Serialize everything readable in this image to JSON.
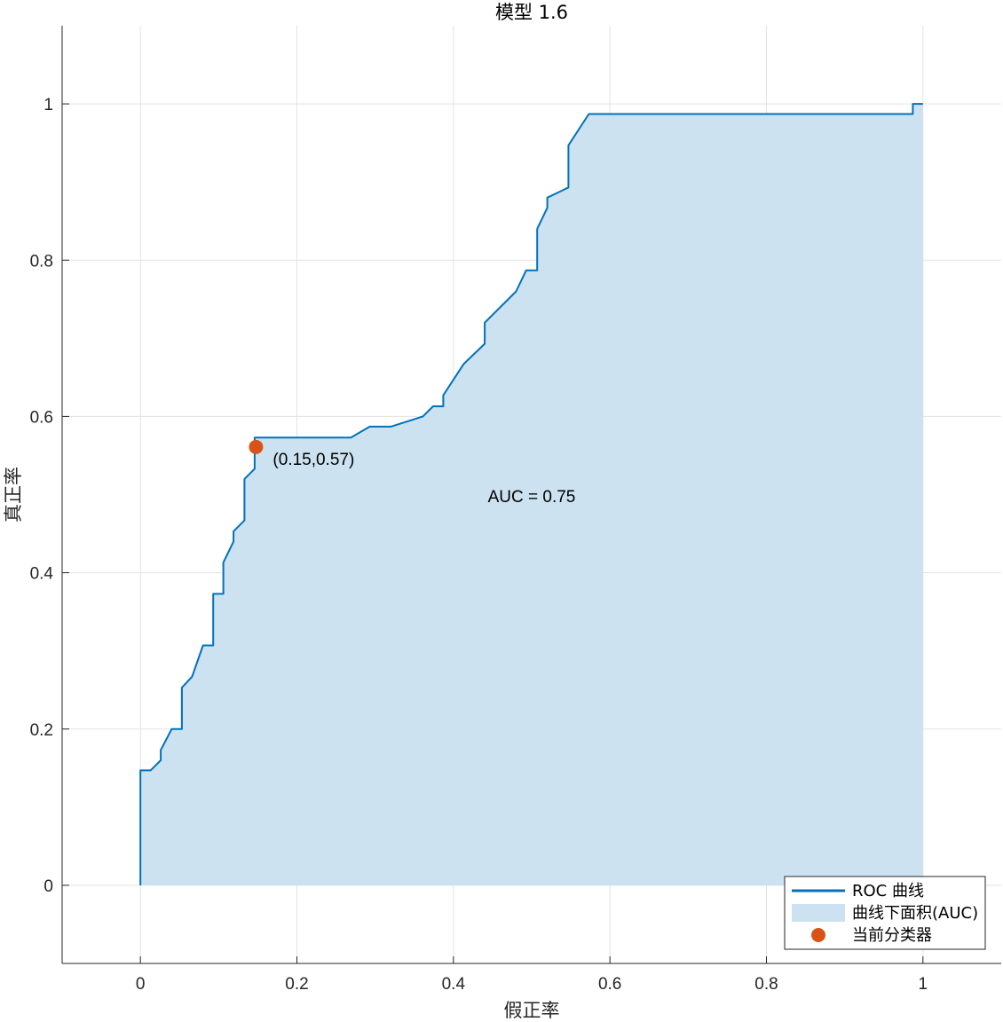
{
  "chart_data": {
    "type": "line",
    "title": "模型 1.6",
    "xlabel": "假正率",
    "ylabel": "真正率",
    "xlim": [
      -0.1,
      1.1
    ],
    "ylim": [
      -0.1,
      1.1
    ],
    "xticks": [
      0,
      0.2,
      0.4,
      0.6,
      0.8,
      1
    ],
    "xtick_labels": [
      "0",
      "0.2",
      "0.4",
      "0.6",
      "0.8",
      "1"
    ],
    "yticks": [
      0,
      0.2,
      0.4,
      0.6,
      0.8,
      1
    ],
    "ytick_labels": [
      "0",
      "0.2",
      "0.4",
      "0.6",
      "0.8",
      "1"
    ],
    "grid": true,
    "legend_position": "bottom-right",
    "series": [
      {
        "name": "ROC 曲线",
        "color": "#0072BD",
        "points": [
          [
            0,
            0
          ],
          [
            0,
            0.147
          ],
          [
            0.013,
            0.147
          ],
          [
            0.026,
            0.16
          ],
          [
            0.026,
            0.173
          ],
          [
            0.04,
            0.2
          ],
          [
            0.053,
            0.2
          ],
          [
            0.053,
            0.253
          ],
          [
            0.066,
            0.267
          ],
          [
            0.08,
            0.307
          ],
          [
            0.093,
            0.307
          ],
          [
            0.093,
            0.373
          ],
          [
            0.106,
            0.373
          ],
          [
            0.106,
            0.413
          ],
          [
            0.119,
            0.44
          ],
          [
            0.119,
            0.453
          ],
          [
            0.133,
            0.467
          ],
          [
            0.133,
            0.52
          ],
          [
            0.146,
            0.533
          ],
          [
            0.146,
            0.573
          ],
          [
            0.269,
            0.573
          ],
          [
            0.293,
            0.587
          ],
          [
            0.32,
            0.587
          ],
          [
            0.361,
            0.6
          ],
          [
            0.374,
            0.613
          ],
          [
            0.387,
            0.613
          ],
          [
            0.387,
            0.627
          ],
          [
            0.413,
            0.667
          ],
          [
            0.44,
            0.693
          ],
          [
            0.44,
            0.72
          ],
          [
            0.48,
            0.76
          ],
          [
            0.493,
            0.787
          ],
          [
            0.507,
            0.787
          ],
          [
            0.507,
            0.84
          ],
          [
            0.52,
            0.867
          ],
          [
            0.52,
            0.88
          ],
          [
            0.547,
            0.893
          ],
          [
            0.547,
            0.947
          ],
          [
            0.573,
            0.987
          ],
          [
            0.987,
            0.987
          ],
          [
            0.987,
            1.0
          ],
          [
            1.0,
            1.0
          ]
        ]
      }
    ],
    "area": {
      "name": "曲线下面积(AUC)",
      "color": "#CCE2F0"
    },
    "marker": {
      "name": "当前分类器",
      "x": 0.15,
      "y": 0.57,
      "color": "#D95319",
      "label": "(0.15,0.57)"
    },
    "annotation": "AUC = 0.75"
  },
  "legend": {
    "items": [
      {
        "label": "ROC 曲线",
        "kind": "line",
        "color": "#0072BD"
      },
      {
        "label": "曲线下面积(AUC)",
        "kind": "patch",
        "color": "#CCE2F0"
      },
      {
        "label": "当前分类器",
        "kind": "dot",
        "color": "#D95319"
      }
    ]
  }
}
